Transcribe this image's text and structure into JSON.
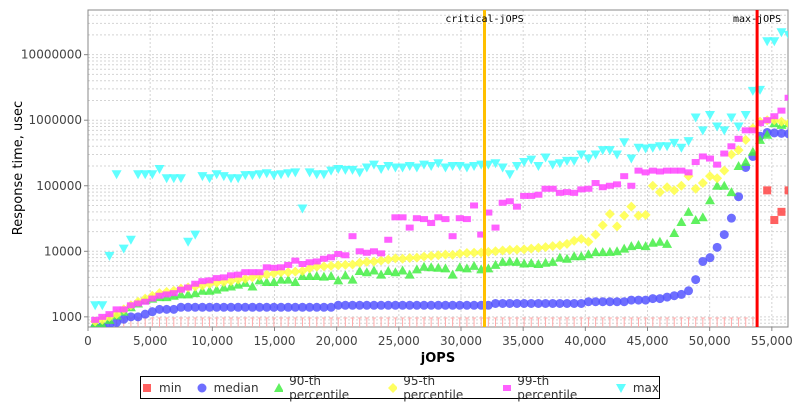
{
  "chart_data": {
    "type": "scatter",
    "xlabel": "jOPS",
    "ylabel": "Response time, usec",
    "xlim": [
      0,
      56300
    ],
    "ylim": [
      700,
      48000000
    ],
    "yscale": "log",
    "grid": true,
    "legend_position": "bottom",
    "x_ticks": [
      "0",
      "5,000",
      "10,000",
      "15,000",
      "20,000",
      "25,000",
      "30,000",
      "35,000",
      "40,000",
      "45,000",
      "50,000",
      "55,000"
    ],
    "y_ticks": [
      "1000",
      "10000",
      "100000",
      "1000000",
      "10000000"
    ],
    "markers": [
      {
        "label": "critical-jOPS",
        "x": 31890,
        "color": "#ffc000"
      },
      {
        "label": "max-jOPS",
        "x": 53815,
        "color": "#ff0000"
      }
    ],
    "x": [
      575,
      1150,
      1725,
      2300,
      2875,
      3450,
      4025,
      4600,
      5175,
      5750,
      6325,
      6900,
      7475,
      8050,
      8625,
      9200,
      9775,
      10350,
      10925,
      11500,
      12075,
      12650,
      13225,
      13800,
      14375,
      14950,
      15525,
      16100,
      16675,
      17250,
      17825,
      18400,
      18975,
      19550,
      20125,
      20700,
      21275,
      21850,
      22425,
      23000,
      23575,
      24150,
      24725,
      25300,
      25875,
      26450,
      27025,
      27600,
      28175,
      28750,
      29325,
      29900,
      30475,
      31050,
      31625,
      32200,
      32775,
      33350,
      33925,
      34500,
      35075,
      35650,
      36225,
      36800,
      37375,
      37950,
      38525,
      39100,
      39675,
      40250,
      40825,
      41400,
      41975,
      42550,
      43125,
      43700,
      44275,
      44850,
      45425,
      46000,
      46575,
      47150,
      47725,
      48300,
      48875,
      49450,
      50025,
      50600,
      51175,
      51750,
      52325,
      52900,
      53475,
      54050,
      54625,
      55200,
      55775,
      56350
    ],
    "series": [
      {
        "name": "min",
        "color": "#ff4444",
        "shape": "square",
        "values": [
          500,
          500,
          500,
          500,
          500,
          500,
          500,
          500,
          500,
          500,
          500,
          500,
          500,
          500,
          500,
          500,
          500,
          500,
          500,
          500,
          500,
          500,
          500,
          500,
          500,
          500,
          500,
          500,
          500,
          500,
          500,
          500,
          500,
          500,
          500,
          500,
          500,
          500,
          500,
          500,
          500,
          500,
          500,
          500,
          500,
          500,
          500,
          500,
          500,
          500,
          500,
          500,
          500,
          500,
          500,
          500,
          500,
          500,
          500,
          500,
          500,
          500,
          500,
          500,
          500,
          500,
          500,
          500,
          500,
          500,
          500,
          500,
          500,
          500,
          500,
          500,
          500,
          500,
          500,
          500,
          500,
          500,
          500,
          500,
          500,
          500,
          500,
          500,
          500,
          500,
          500,
          500,
          500,
          null,
          85000,
          30000,
          40000,
          85000
        ]
      },
      {
        "name": "median",
        "color": "#5555ff",
        "shape": "circle",
        "values": [
          700,
          720,
          750,
          820,
          920,
          1000,
          1000,
          1100,
          1200,
          1300,
          1300,
          1300,
          1400,
          1400,
          1400,
          1400,
          1400,
          1400,
          1400,
          1400,
          1400,
          1400,
          1400,
          1400,
          1400,
          1400,
          1400,
          1400,
          1400,
          1400,
          1400,
          1400,
          1400,
          1400,
          1500,
          1500,
          1500,
          1500,
          1500,
          1500,
          1500,
          1500,
          1500,
          1500,
          1500,
          1500,
          1500,
          1500,
          1500,
          1500,
          1500,
          1500,
          1500,
          1500,
          1500,
          1500,
          1600,
          1600,
          1600,
          1600,
          1600,
          1600,
          1600,
          1600,
          1600,
          1600,
          1600,
          1600,
          1600,
          1700,
          1700,
          1700,
          1700,
          1700,
          1700,
          1800,
          1800,
          1800,
          1900,
          1900,
          2000,
          2100,
          2200,
          2500,
          3700,
          7000,
          8000,
          11500,
          18000,
          32000,
          68000,
          190000,
          280000,
          570000,
          650000,
          640000,
          630000,
          620000
        ]
      },
      {
        "name": "90-th percentile",
        "color": "#44ee44",
        "shape": "triangle-up",
        "values": [
          800,
          760,
          900,
          1050,
          1200,
          1400,
          1600,
          1800,
          1900,
          2000,
          2000,
          2100,
          2200,
          2200,
          2300,
          2500,
          2500,
          2600,
          2800,
          2900,
          3100,
          3300,
          2900,
          3600,
          3400,
          3400,
          3700,
          3700,
          3400,
          4200,
          4200,
          4200,
          4100,
          4200,
          3600,
          4300,
          3700,
          5000,
          4800,
          5100,
          4400,
          5000,
          4800,
          5100,
          4400,
          5300,
          5800,
          5700,
          5600,
          5500,
          4400,
          5700,
          5500,
          6000,
          5300,
          5500,
          6200,
          6900,
          7000,
          6900,
          6500,
          6600,
          6400,
          6700,
          6900,
          8000,
          7700,
          8400,
          8400,
          9000,
          9700,
          9700,
          9800,
          10000,
          11000,
          12000,
          12500,
          12000,
          13500,
          14000,
          13000,
          19000,
          28000,
          40000,
          30000,
          33000,
          60000,
          100000,
          100000,
          80000,
          200000,
          230000,
          330000,
          500000,
          600000,
          900000,
          850000,
          900000
        ]
      },
      {
        "name": "95-th percentile",
        "color": "#ffff44",
        "shape": "diamond",
        "values": [
          850,
          900,
          1000,
          1100,
          1300,
          1500,
          1700,
          1900,
          2100,
          2300,
          2400,
          2500,
          2700,
          2800,
          2900,
          3000,
          3200,
          3300,
          3400,
          3500,
          3700,
          3800,
          4000,
          4200,
          4400,
          4600,
          4800,
          4800,
          4900,
          5000,
          5500,
          5800,
          5900,
          6000,
          6100,
          6200,
          6300,
          6700,
          6900,
          7000,
          7200,
          7500,
          7800,
          7700,
          7900,
          8000,
          8300,
          8500,
          8700,
          8900,
          8800,
          9200,
          9400,
          9500,
          9600,
          9800,
          10000,
          10300,
          10500,
          10600,
          10700,
          11000,
          11300,
          11600,
          12000,
          12300,
          13000,
          14500,
          15500,
          14000,
          18000,
          25000,
          37000,
          24000,
          35000,
          48000,
          35000,
          36000,
          100000,
          80000,
          95000,
          85000,
          100000,
          140000,
          90000,
          110000,
          140000,
          130000,
          170000,
          300000,
          350000,
          500000,
          750000,
          950000,
          1000000,
          1000000,
          950000,
          900000
        ]
      },
      {
        "name": "99-th percentile",
        "color": "#ff44ff",
        "shape": "rect",
        "values": [
          900,
          1000,
          1100,
          1300,
          1300,
          1500,
          1600,
          1700,
          1900,
          2100,
          2200,
          2300,
          2600,
          2800,
          3200,
          3500,
          3600,
          3900,
          4000,
          4300,
          4400,
          4800,
          4800,
          4800,
          5700,
          5600,
          5700,
          6200,
          7200,
          6400,
          6800,
          7000,
          7700,
          8100,
          9100,
          8700,
          17000,
          10000,
          9500,
          10000,
          9300,
          15000,
          33000,
          33000,
          23000,
          32000,
          31000,
          27000,
          33000,
          31000,
          17000,
          32000,
          31000,
          50000,
          18000,
          39000,
          23000,
          55000,
          58000,
          48000,
          70000,
          70000,
          73000,
          90000,
          90000,
          78000,
          80000,
          78000,
          88000,
          90000,
          110000,
          95000,
          100000,
          105000,
          140000,
          100000,
          170000,
          160000,
          170000,
          165000,
          170000,
          170000,
          170000,
          160000,
          230000,
          280000,
          260000,
          210000,
          310000,
          400000,
          520000,
          700000,
          700000,
          900000,
          1000000,
          1150000,
          1400000,
          2200000
        ]
      },
      {
        "name": "max",
        "color": "#44ffff",
        "shape": "triangle-down",
        "values": [
          1500,
          1500,
          8500,
          150000,
          11000,
          15000,
          150000,
          150000,
          150000,
          180000,
          130000,
          130000,
          130000,
          14000,
          18000,
          140000,
          130000,
          150000,
          140000,
          130000,
          130000,
          145000,
          145000,
          150000,
          155000,
          145000,
          150000,
          155000,
          160000,
          45000,
          160000,
          150000,
          150000,
          170000,
          180000,
          175000,
          175000,
          160000,
          190000,
          210000,
          180000,
          200000,
          190000,
          190000,
          200000,
          190000,
          210000,
          200000,
          220000,
          190000,
          200000,
          200000,
          190000,
          200000,
          210000,
          210000,
          220000,
          190000,
          150000,
          200000,
          230000,
          250000,
          200000,
          270000,
          210000,
          220000,
          240000,
          240000,
          300000,
          260000,
          300000,
          350000,
          350000,
          300000,
          460000,
          260000,
          380000,
          370000,
          380000,
          400000,
          400000,
          450000,
          380000,
          480000,
          1100000,
          700000,
          1200000,
          800000,
          700000,
          1100000,
          800000,
          1200000,
          2800000,
          2900000,
          16000000,
          16000000,
          22000000,
          20000000
        ]
      }
    ]
  }
}
